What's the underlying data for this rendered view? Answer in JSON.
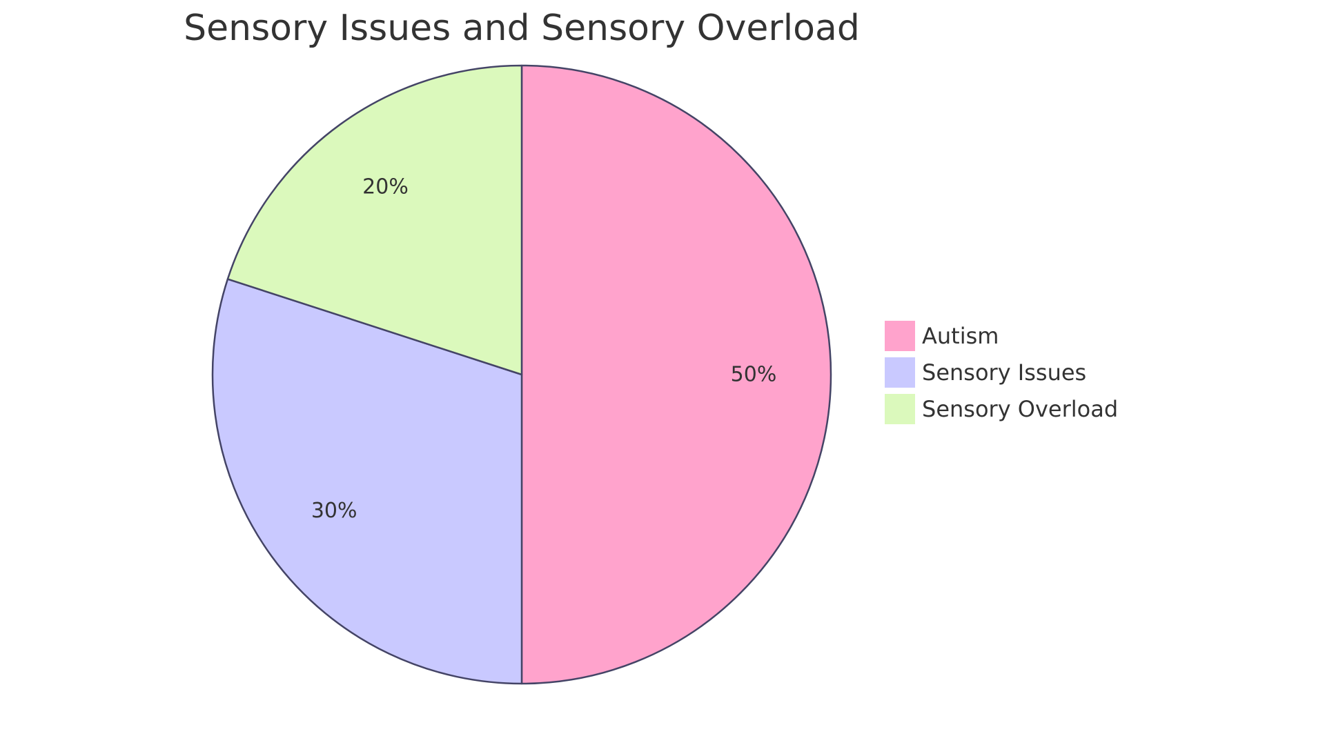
{
  "chart_data": {
    "type": "pie",
    "title": "Sensory Issues and Sensory Overload",
    "categories": [
      "Autism",
      "Sensory Issues",
      "Sensory Overload"
    ],
    "values": [
      50,
      30,
      20
    ],
    "value_labels": [
      "50%",
      "30%",
      "20%"
    ],
    "colors": [
      "#FFA3CC",
      "#C9C9FF",
      "#DBF9BC"
    ],
    "outline_color": "#444466",
    "legend_position": "right"
  }
}
